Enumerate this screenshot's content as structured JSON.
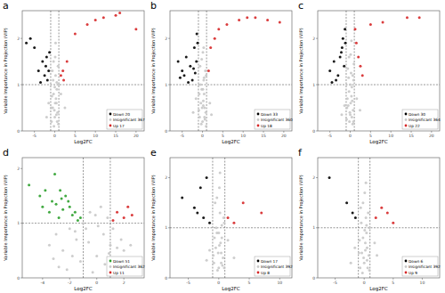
{
  "chart_data": [
    {
      "type": "scatter",
      "title": "a",
      "x_label": "Log2FC",
      "y_label": "Variable Importance in Projection (VIP)",
      "xlim": [
        -8,
        22
      ],
      "ylim": [
        0,
        2.6
      ],
      "xticks": [
        -5,
        0,
        5,
        10,
        15,
        20
      ],
      "yticks": [
        0,
        1,
        2
      ],
      "thresholds": {
        "x": [
          -1,
          1
        ],
        "y": 1
      },
      "legend": "bottom-right",
      "grid": false,
      "series": [
        {
          "name": "Down 20",
          "color": "#000000",
          "x": [
            -7,
            -5,
            -4,
            -3,
            -2.5,
            -2,
            -1.8,
            -1.5,
            -3.5,
            -2.2,
            -6,
            -1.3
          ],
          "values": [
            1.9,
            1.8,
            1.3,
            1.5,
            1.2,
            1.6,
            1.1,
            1.3,
            1.05,
            1.4,
            2.0,
            1.7
          ]
        },
        {
          "name": "Insignificant 367",
          "color": "#c8c8c8",
          "x": [
            -0.8,
            -0.5,
            -0.3,
            0,
            0.2,
            0.4,
            0.7,
            0.9,
            -0.6,
            0.1,
            0.5,
            -0.2,
            0.3,
            -0.9,
            0.8,
            -1.5,
            1.5,
            -2,
            2.5,
            0,
            0.2,
            -0.4,
            0.6,
            -0.1,
            0.4,
            -0.7,
            0.9,
            0.1,
            -0.3,
            0.5
          ],
          "values": [
            0.2,
            0.5,
            0.8,
            0.3,
            1.2,
            0.6,
            0.4,
            1.0,
            1.3,
            1.6,
            0.9,
            0.1,
            0.7,
            0.5,
            1.4,
            0.6,
            0.8,
            0.3,
            0.5,
            0.95,
            1.9,
            1.1,
            0.2,
            0.45,
            0.35,
            0.75,
            0.15,
            0.6,
            1.5,
            1.05
          ]
        },
        {
          "name": "Up 17",
          "color": "#d62728",
          "x": [
            1.5,
            2,
            2.2,
            3,
            5,
            8,
            10,
            12,
            15,
            16,
            20
          ],
          "values": [
            1.2,
            1.3,
            1.1,
            1.5,
            2.1,
            2.3,
            2.4,
            2.45,
            2.5,
            2.55,
            2.2
          ]
        }
      ]
    },
    {
      "type": "scatter",
      "title": "b",
      "x_label": "Log2FC",
      "y_label": "Variable Importance in Projection (VIP)",
      "xlim": [
        -8,
        22
      ],
      "ylim": [
        0,
        2.6
      ],
      "xticks": [
        -5,
        0,
        5,
        10,
        15,
        20
      ],
      "yticks": [
        0,
        1,
        2
      ],
      "thresholds": {
        "x": [
          -1,
          1
        ],
        "y": 1
      },
      "legend": "bottom-right",
      "grid": false,
      "series": [
        {
          "name": "Down 33",
          "color": "#000000",
          "x": [
            -6,
            -5,
            -4.5,
            -4,
            -3,
            -2.5,
            -2,
            -1.8,
            -1.5,
            -1.2,
            -3.5,
            -2.2,
            -5.5,
            -1.4
          ],
          "values": [
            1.5,
            1.3,
            1.2,
            1.6,
            1.4,
            1.1,
            1.8,
            1.25,
            1.5,
            1.9,
            1.05,
            1.35,
            1.15,
            2.1
          ]
        },
        {
          "name": "Insignificant 360",
          "color": "#c8c8c8",
          "x": [
            -0.7,
            -0.4,
            -0.2,
            0,
            0.3,
            0.5,
            0.8,
            0.9,
            -0.6,
            0.1,
            0.4,
            -0.3,
            0.2,
            -0.9,
            0.7,
            -1.6,
            1.8,
            -2.3,
            2.2,
            0.1,
            0.3,
            -0.5,
            0.6,
            -0.1,
            0.5,
            -0.8,
            0.9,
            0.2,
            -0.2,
            0.4
          ],
          "values": [
            0.3,
            0.6,
            0.9,
            0.2,
            1.1,
            0.5,
            0.4,
            1.2,
            1.4,
            1.7,
            0.8,
            0.15,
            0.65,
            0.45,
            1.3,
            0.7,
            0.6,
            0.4,
            0.35,
            0.9,
            1.8,
            1.0,
            0.25,
            0.5,
            0.3,
            0.8,
            0.1,
            0.55,
            1.55,
            1.15
          ]
        },
        {
          "name": "Up 18",
          "color": "#d62728",
          "x": [
            1.5,
            2,
            3,
            4,
            6,
            9,
            11,
            13,
            16,
            19
          ],
          "values": [
            1.3,
            1.8,
            2.0,
            2.2,
            2.3,
            2.4,
            2.45,
            2.45,
            2.4,
            2.35
          ]
        }
      ]
    },
    {
      "type": "scatter",
      "title": "c",
      "x_label": "Log2FC",
      "y_label": "Variable Importance in Projection (VIP)",
      "xlim": [
        -8,
        22
      ],
      "ylim": [
        0,
        2.6
      ],
      "xticks": [
        -5,
        0,
        5,
        10,
        15,
        20
      ],
      "yticks": [
        0,
        1,
        2
      ],
      "thresholds": {
        "x": [
          -1,
          1
        ],
        "y": 1
      },
      "legend": "bottom-right",
      "grid": false,
      "series": [
        {
          "name": "Down 30",
          "color": "#000000",
          "x": [
            -5,
            -4,
            -3,
            -2.5,
            -2,
            -1.8,
            -1.5,
            -1.2,
            -3.5,
            -2.2,
            -1.3,
            -4.5
          ],
          "values": [
            1.3,
            1.5,
            1.2,
            1.6,
            1.8,
            2.0,
            1.4,
            1.9,
            1.1,
            1.7,
            2.2,
            1.05
          ]
        },
        {
          "name": "Insignificant 364",
          "color": "#c8c8c8",
          "x": [
            -0.9,
            -0.5,
            -0.3,
            0,
            0.2,
            0.5,
            0.7,
            0.8,
            -0.6,
            0.1,
            0.4,
            -0.2,
            0.3,
            -0.8,
            0.9,
            -1.4,
            1.6,
            -2.1,
            2.4,
            0,
            0.3,
            -0.4,
            0.6,
            -0.1,
            0.4,
            -0.7,
            0.8,
            0.1,
            -0.3,
            0.6
          ],
          "values": [
            0.25,
            0.55,
            0.85,
            0.35,
            1.25,
            0.65,
            0.45,
            1.1,
            1.35,
            1.65,
            0.95,
            0.2,
            0.75,
            0.5,
            1.45,
            0.55,
            0.7,
            0.35,
            0.45,
            1.0,
            1.95,
            1.15,
            0.15,
            0.4,
            0.3,
            0.7,
            0.2,
            0.6,
            1.6,
            1.2
          ]
        },
        {
          "name": "Up 22",
          "color": "#d62728",
          "x": [
            1.2,
            1.5,
            2,
            2.5,
            3,
            5,
            8,
            14,
            17
          ],
          "values": [
            2.2,
            1.9,
            1.6,
            1.4,
            1.2,
            2.3,
            2.35,
            2.45,
            2.45
          ]
        }
      ]
    },
    {
      "type": "scatter",
      "title": "d",
      "x_label": "Log2FC",
      "y_label": "Variable Importance in Projection (VIP)",
      "xlim": [
        -5.5,
        3.5
      ],
      "ylim": [
        0,
        2.2
      ],
      "xticks": [
        -4,
        -2,
        0,
        2
      ],
      "yticks": [
        0,
        1,
        2
      ],
      "thresholds": {
        "x": [
          -1,
          1
        ],
        "y": 1
      },
      "legend": "bottom-right",
      "grid": false,
      "series": [
        {
          "name": "Down 51",
          "color": "#2ca02c",
          "x": [
            -5,
            -4.2,
            -4,
            -3.8,
            -3.5,
            -3.3,
            -3,
            -2.8,
            -2.6,
            -2.5,
            -2.3,
            -2,
            -1.8,
            -1.6,
            -1.4,
            -1.2,
            -3.1,
            -2.7,
            -2.1
          ],
          "values": [
            1.7,
            1.5,
            1.3,
            1.6,
            1.2,
            1.4,
            1.35,
            1.1,
            1.45,
            1.25,
            1.5,
            1.3,
            1.15,
            1.2,
            1.05,
            1.1,
            1.9,
            1.6,
            1.4
          ]
        },
        {
          "name": "Insignificant 362",
          "color": "#c8c8c8",
          "x": [
            -3.5,
            -3,
            -2.5,
            -2,
            -1.5,
            -1,
            -0.5,
            0,
            0.5,
            1,
            1.5,
            2,
            -2.8,
            -1.8,
            -0.8,
            0.3,
            0.8,
            1.8,
            2.5,
            -0.3,
            -1.2,
            -2.2,
            0.1,
            0.6,
            -0.6,
            1.2,
            -1.6,
            0.9,
            -0.1,
            -3.2
          ],
          "values": [
            0.6,
            0.8,
            0.5,
            0.9,
            0.7,
            1.0,
            1.2,
            0.4,
            0.8,
            0.6,
            0.55,
            0.5,
            0.2,
            0.4,
            0.9,
            1.3,
            1.1,
            0.7,
            0.6,
            0.1,
            0.3,
            0.15,
            0.95,
            0.25,
            0.65,
            0.9,
            0.85,
            0.45,
            1.15,
            0.35
          ]
        },
        {
          "name": "Up 11",
          "color": "#d62728",
          "x": [
            1.2,
            1.5,
            2,
            2.3,
            2.6
          ],
          "values": [
            1.05,
            1.2,
            1.1,
            1.3,
            1.15
          ]
        }
      ]
    },
    {
      "type": "scatter",
      "title": "e",
      "x_label": "Log2FC",
      "y_label": "Variable Importance in Projection (VIP)",
      "xlim": [
        -8,
        12
      ],
      "ylim": [
        0,
        2.4
      ],
      "xticks": [
        -5,
        0,
        5,
        10
      ],
      "yticks": [
        0,
        1,
        2
      ],
      "thresholds": {
        "x": [
          -1,
          1
        ],
        "y": 1
      },
      "legend": "bottom-right",
      "grid": false,
      "series": [
        {
          "name": "Down 17",
          "color": "#000000",
          "x": [
            -6,
            -4,
            -3,
            -2.5,
            -2,
            -1.5,
            -3.5
          ],
          "values": [
            1.6,
            1.4,
            1.8,
            1.2,
            2.0,
            1.1,
            1.3
          ]
        },
        {
          "name": "Insignificant 392",
          "color": "#c8c8c8",
          "x": [
            -0.8,
            -0.5,
            -0.3,
            0,
            0.2,
            0.4,
            0.7,
            0.9,
            -0.6,
            0.1,
            0.5,
            -0.2,
            0.3,
            -0.9,
            0.8,
            -1.5,
            1.5,
            -2,
            2.5,
            0,
            0.2,
            -0.4,
            0.6,
            -0.1,
            0.4,
            -0.7,
            0.9,
            0.1,
            -0.3,
            0.5
          ],
          "values": [
            0.3,
            0.6,
            0.9,
            0.2,
            1.3,
            0.5,
            0.4,
            1.1,
            1.5,
            1.8,
            0.8,
            0.15,
            0.7,
            0.45,
            1.2,
            0.55,
            0.75,
            0.35,
            0.4,
            0.9,
            2.1,
            1.0,
            0.25,
            0.5,
            0.3,
            0.8,
            0.2,
            0.65,
            1.6,
            1.05
          ]
        },
        {
          "name": "Up 8",
          "color": "#d62728",
          "x": [
            1.5,
            2.5,
            4,
            7
          ],
          "values": [
            1.2,
            1.1,
            1.5,
            1.3
          ]
        }
      ]
    },
    {
      "type": "scatter",
      "title": "f",
      "x_label": "Log2FC",
      "y_label": "Variable Importance in Projection (VIP)",
      "xlim": [
        -8,
        13
      ],
      "ylim": [
        0,
        2.4
      ],
      "xticks": [
        -5,
        0,
        5,
        10
      ],
      "yticks": [
        0,
        1,
        2
      ],
      "thresholds": {
        "x": [
          -1,
          1
        ],
        "y": 1
      },
      "legend": "bottom-right",
      "grid": false,
      "series": [
        {
          "name": "Down 6",
          "color": "#000000",
          "x": [
            -6,
            -3,
            -2,
            -1.5
          ],
          "values": [
            2.0,
            1.5,
            1.3,
            1.2
          ]
        },
        {
          "name": "Insignificant 392",
          "color": "#c8c8c8",
          "x": [
            -0.7,
            -0.4,
            -0.2,
            0,
            0.3,
            0.5,
            0.8,
            0.9,
            -0.6,
            0.1,
            0.4,
            -0.3,
            0.2,
            -0.9,
            0.7,
            -1.6,
            1.8,
            -2.3,
            2.2,
            0.1,
            0.3,
            -0.5,
            0.6,
            -0.1,
            0.5,
            -0.8,
            0.9,
            0.2,
            -0.2,
            0.4
          ],
          "values": [
            0.2,
            0.5,
            0.8,
            0.3,
            1.2,
            0.6,
            0.45,
            1.0,
            1.4,
            1.7,
            0.9,
            0.1,
            0.7,
            0.5,
            1.3,
            0.6,
            0.7,
            0.3,
            0.45,
            0.95,
            1.9,
            1.1,
            0.2,
            0.4,
            0.35,
            0.75,
            0.15,
            0.55,
            1.5,
            1.05
          ]
        },
        {
          "name": "Up 9",
          "color": "#d62728",
          "x": [
            2,
            3,
            4,
            5
          ],
          "values": [
            1.2,
            1.4,
            1.3,
            1.1
          ]
        }
      ]
    }
  ]
}
